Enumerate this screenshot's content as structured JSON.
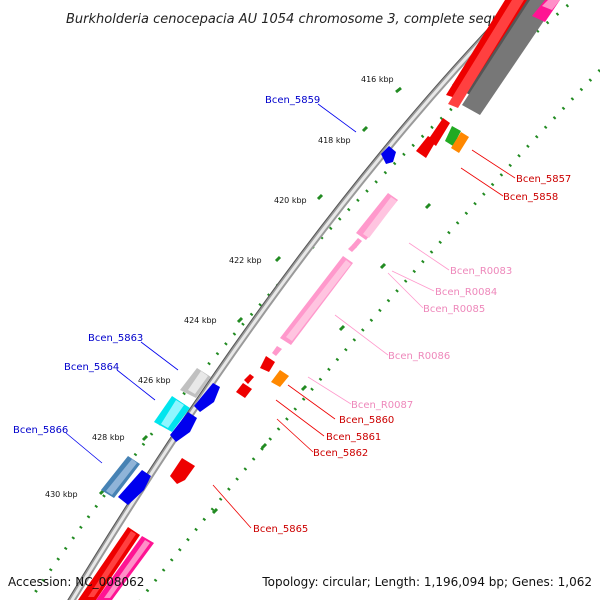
{
  "title": "Burkholderia cenocepacia AU 1054 chromosome 3, complete sequ...",
  "accession": "Accession: NC_008062",
  "summary": "Topology: circular; Length: 1,196,094 bp; Genes: 1,062",
  "ticks": [
    "416 kbp",
    "418 kbp",
    "420 kbp",
    "422 kbp",
    "424 kbp",
    "426 kbp",
    "428 kbp",
    "430 kbp"
  ],
  "labels": {
    "bcen_5859": "Bcen_5859",
    "bcen_5857": "Bcen_5857",
    "bcen_5858": "Bcen_5858",
    "bcen_r0083": "Bcen_R0083",
    "bcen_r0084": "Bcen_R0084",
    "bcen_r0085": "Bcen_R0085",
    "bcen_r0086": "Bcen_R0086",
    "bcen_5863": "Bcen_5863",
    "bcen_5864": "Bcen_5864",
    "bcen_r0087": "Bcen_R0087",
    "bcen_5860": "Bcen_5860",
    "bcen_5861": "Bcen_5861",
    "bcen_5862": "Bcen_5862",
    "bcen_5866": "Bcen_5866",
    "bcen_5865": "Bcen_5865"
  },
  "colors": {
    "forward_cds": "#0000ee",
    "reverse_cds": "#ee0000",
    "rna": "#ff99cc",
    "backbone": "#888888",
    "tick": "#228b22"
  }
}
